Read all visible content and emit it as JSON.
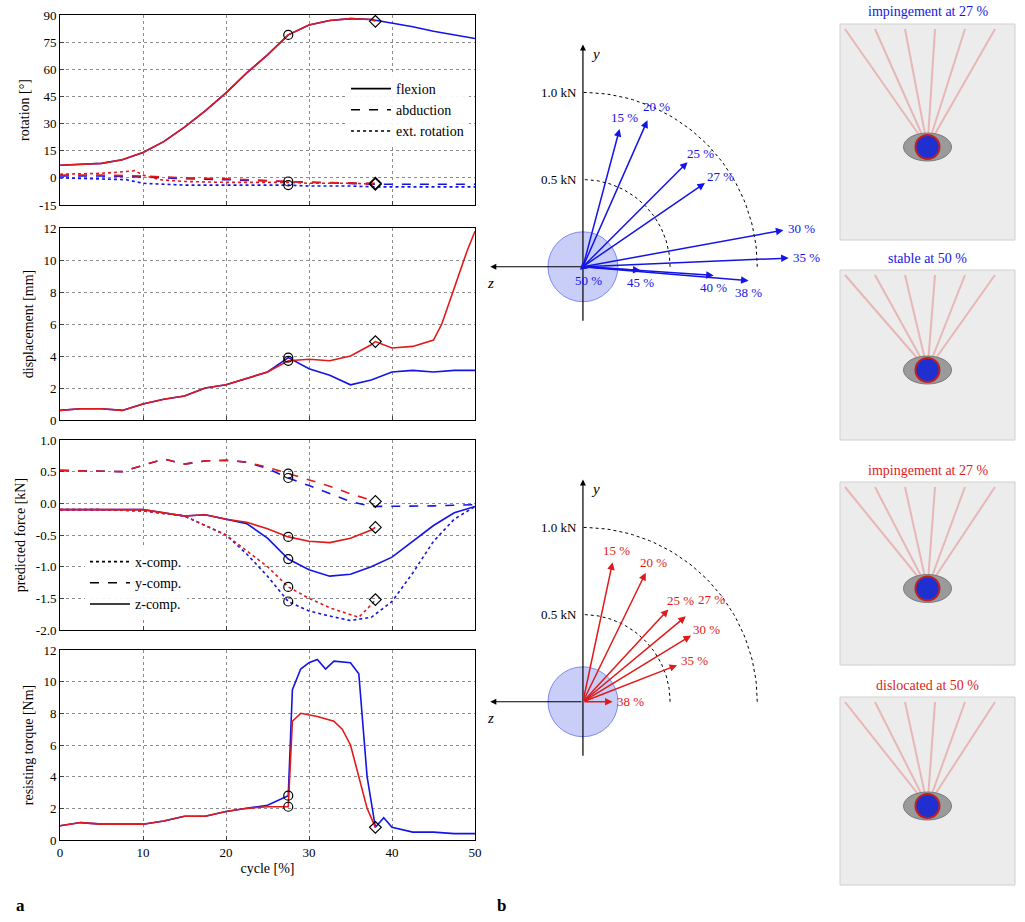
{
  "panel_labels": [
    "a",
    "b"
  ],
  "chart_data": [
    {
      "type": "line",
      "ylabel": "rotation [°]",
      "xlim": [
        0,
        50
      ],
      "xticks": [
        0,
        10,
        20,
        30,
        40,
        50
      ],
      "ylim": [
        -15,
        90
      ],
      "yticks": [
        -15,
        0,
        15,
        30,
        45,
        60,
        75,
        90
      ],
      "grid": true,
      "tick_labels": "y",
      "legend": "center right",
      "legend_entries": [
        {
          "name": "flexion",
          "line_style": "solid"
        },
        {
          "name": "abduction",
          "line_style": "dashed"
        },
        {
          "name": "ext. rotation",
          "line_style": "dotted"
        }
      ],
      "series": [
        {
          "color": "#1414e6",
          "line_style": "solid",
          "x": [
            0,
            2.5,
            5,
            7.5,
            10,
            12.5,
            15,
            17.5,
            20,
            22.5,
            25,
            27.5,
            30,
            32.5,
            35,
            37.5,
            40,
            42.5,
            45,
            47.5,
            50
          ],
          "values": [
            7,
            7.5,
            8,
            10,
            14,
            20,
            28,
            37,
            47,
            58,
            68,
            79,
            84.5,
            87,
            88,
            87.5,
            85.5,
            83.5,
            81,
            79,
            77
          ]
        },
        {
          "color": "#1414e6",
          "line_style": "dashed",
          "x": [
            0,
            5,
            10,
            15,
            20,
            25,
            27.5,
            30,
            35,
            38,
            40,
            45,
            50
          ],
          "values": [
            1,
            1,
            0.5,
            -0.5,
            -1,
            -1.8,
            -2,
            -2.5,
            -3,
            -3.5,
            -3.5,
            -3.5,
            -3.5
          ]
        },
        {
          "color": "#1414e6",
          "line_style": "dotted",
          "x": [
            0,
            5,
            8,
            10,
            12.5,
            15,
            20,
            25,
            27.5,
            30,
            35,
            38,
            40,
            45,
            50
          ],
          "values": [
            0,
            -0.5,
            -1,
            -3,
            -3.5,
            -4,
            -4,
            -4,
            -4,
            -4.5,
            -4.5,
            -5,
            -5,
            -5,
            -5
          ]
        },
        {
          "color": "#e01a1a",
          "line_style": "solid",
          "x": [
            0,
            2.5,
            5,
            7.5,
            10,
            12.5,
            15,
            17.5,
            20,
            22.5,
            25,
            27.5,
            30,
            32.5,
            35,
            37.5,
            38
          ],
          "values": [
            7,
            7.5,
            8,
            10,
            14,
            20,
            28,
            37,
            47,
            58,
            68,
            79,
            84.5,
            87,
            88,
            87.5,
            86.5
          ]
        },
        {
          "color": "#e01a1a",
          "line_style": "dashed",
          "x": [
            0,
            5,
            10,
            15,
            20,
            25,
            27.5,
            30,
            35,
            38
          ],
          "values": [
            1.5,
            1.5,
            1,
            0,
            -0.5,
            -1.5,
            -2,
            -2.5,
            -2.8,
            -3
          ]
        },
        {
          "color": "#e01a1a",
          "line_style": "dotted",
          "x": [
            0,
            5,
            8,
            9,
            10,
            12,
            15,
            20,
            25,
            27.5,
            30,
            35,
            38
          ],
          "values": [
            2,
            2.5,
            3.5,
            4,
            1.5,
            -1,
            -2,
            -2.5,
            -2.5,
            -2.5,
            -3,
            -3,
            -3.5
          ]
        },
        {
          "type": "scatter",
          "marker": "circle",
          "color": "#000000",
          "x": [
            27.5,
            27.5,
            27.5
          ],
          "values": [
            79,
            -2,
            -4
          ]
        },
        {
          "type": "scatter",
          "marker": "diamond",
          "color": "#000000",
          "x": [
            38,
            38,
            38
          ],
          "values": [
            86.5,
            -3,
            -3.5
          ]
        }
      ]
    },
    {
      "type": "line",
      "ylabel": "displacement [mm]",
      "xlim": [
        0,
        50
      ],
      "xticks": [
        0,
        10,
        20,
        30,
        40,
        50
      ],
      "ylim": [
        0,
        12
      ],
      "yticks": [
        0,
        2,
        4,
        6,
        8,
        10,
        12
      ],
      "grid": true,
      "tick_labels": "y",
      "series": [
        {
          "color": "#1414e6",
          "line_style": "solid",
          "x": [
            0,
            2.5,
            5,
            7.5,
            10,
            12.5,
            15,
            17.5,
            20,
            22.5,
            25,
            27.5,
            30,
            32.5,
            35,
            37.5,
            40,
            42.5,
            45,
            47.5,
            50
          ],
          "values": [
            0.6,
            0.7,
            0.7,
            0.6,
            1.0,
            1.3,
            1.5,
            2.0,
            2.2,
            2.6,
            3.0,
            3.9,
            3.2,
            2.8,
            2.2,
            2.5,
            3.0,
            3.1,
            3.0,
            3.1,
            3.1
          ]
        },
        {
          "color": "#e01a1a",
          "line_style": "solid",
          "x": [
            0,
            2.5,
            5,
            7.5,
            10,
            12.5,
            15,
            17.5,
            20,
            22.5,
            25,
            27.5,
            30,
            32.5,
            35,
            37.5,
            38,
            40,
            42.5,
            45,
            46,
            47,
            48,
            49,
            50
          ],
          "values": [
            0.6,
            0.7,
            0.7,
            0.6,
            1.0,
            1.3,
            1.5,
            2.0,
            2.2,
            2.6,
            3.0,
            3.7,
            3.8,
            3.7,
            4.0,
            4.7,
            4.9,
            4.5,
            4.6,
            5.0,
            6.0,
            7.5,
            9.0,
            10.5,
            11.8
          ]
        },
        {
          "type": "scatter",
          "marker": "circle",
          "color": "#000000",
          "x": [
            27.5,
            27.5
          ],
          "values": [
            3.9,
            3.7
          ]
        },
        {
          "type": "scatter",
          "marker": "diamond",
          "color": "#000000",
          "x": [
            38
          ],
          "values": [
            4.9
          ]
        }
      ]
    },
    {
      "type": "line",
      "ylabel": "predicted force [kN]",
      "xlim": [
        0,
        50
      ],
      "xticks": [
        0,
        10,
        20,
        30,
        40,
        50
      ],
      "ylim": [
        -2,
        1
      ],
      "yticks": [
        {
          "value": -2,
          "label": "-2.0"
        },
        {
          "value": -1.5,
          "label": "-1.5"
        },
        {
          "value": -1,
          "label": "-1.0"
        },
        {
          "value": -0.5,
          "label": "-0.5"
        },
        {
          "value": 0,
          "label": "0.0"
        },
        {
          "value": 0.5,
          "label": "0.5"
        },
        {
          "value": 1,
          "label": "1.0"
        }
      ],
      "grid": true,
      "tick_labels": "y",
      "legend": "lower left",
      "legend_entries": [
        {
          "name": "x-comp.",
          "line_style": "dotted"
        },
        {
          "name": "y-comp.",
          "line_style": "dashed"
        },
        {
          "name": "z-comp.",
          "line_style": "solid"
        }
      ],
      "series": [
        {
          "color": "#1414e6",
          "line_style": "dashed",
          "x": [
            0,
            5,
            7.5,
            10,
            12.5,
            15,
            17.5,
            20,
            22.5,
            25,
            27.5,
            30,
            32.5,
            35,
            37.5,
            40,
            45,
            50
          ],
          "values": [
            0.52,
            0.5,
            0.5,
            0.6,
            0.7,
            0.62,
            0.67,
            0.68,
            0.65,
            0.55,
            0.4,
            0.28,
            0.15,
            0.03,
            -0.05,
            -0.05,
            -0.04,
            -0.02
          ]
        },
        {
          "color": "#1414e6",
          "line_style": "solid",
          "x": [
            0,
            5,
            10,
            12.5,
            15,
            17.5,
            20,
            22.5,
            25,
            27.5,
            30,
            32.5,
            35,
            37.5,
            40,
            42.5,
            45,
            47.5,
            50
          ],
          "values": [
            -0.1,
            -0.1,
            -0.1,
            -0.15,
            -0.2,
            -0.18,
            -0.25,
            -0.32,
            -0.55,
            -0.88,
            -1.05,
            -1.15,
            -1.12,
            -1.0,
            -0.85,
            -0.6,
            -0.35,
            -0.15,
            -0.05
          ]
        },
        {
          "color": "#1414e6",
          "line_style": "dotted",
          "x": [
            0,
            5,
            10,
            15,
            17.5,
            20,
            22.5,
            25,
            27.5,
            30,
            32.5,
            35,
            37.5,
            40,
            42.5,
            45,
            47.5,
            50
          ],
          "values": [
            -0.1,
            -0.1,
            -0.12,
            -0.2,
            -0.35,
            -0.5,
            -0.8,
            -1.15,
            -1.55,
            -1.7,
            -1.78,
            -1.85,
            -1.8,
            -1.55,
            -1.1,
            -0.6,
            -0.25,
            -0.05
          ]
        },
        {
          "color": "#e01a1a",
          "line_style": "dashed",
          "x": [
            0,
            5,
            7.5,
            10,
            12.5,
            15,
            17.5,
            20,
            22.5,
            25,
            27.5,
            30,
            32.5,
            35,
            37.5,
            38
          ],
          "values": [
            0.52,
            0.5,
            0.5,
            0.6,
            0.7,
            0.62,
            0.67,
            0.68,
            0.65,
            0.57,
            0.47,
            0.37,
            0.27,
            0.15,
            0.05,
            0.03
          ]
        },
        {
          "color": "#e01a1a",
          "line_style": "solid",
          "x": [
            0,
            5,
            10,
            12.5,
            15,
            17.5,
            20,
            22.5,
            25,
            27.5,
            30,
            32.5,
            35,
            37.5,
            38
          ],
          "values": [
            -0.1,
            -0.1,
            -0.1,
            -0.15,
            -0.2,
            -0.18,
            -0.25,
            -0.3,
            -0.4,
            -0.53,
            -0.6,
            -0.62,
            -0.55,
            -0.42,
            -0.38
          ]
        },
        {
          "color": "#e01a1a",
          "line_style": "dotted",
          "x": [
            0,
            5,
            10,
            15,
            17.5,
            20,
            22.5,
            25,
            27.5,
            30,
            32.5,
            35,
            36,
            37.5,
            38
          ],
          "values": [
            -0.1,
            -0.1,
            -0.12,
            -0.2,
            -0.35,
            -0.5,
            -0.75,
            -1.0,
            -1.32,
            -1.5,
            -1.65,
            -1.75,
            -1.8,
            -1.6,
            -1.52
          ]
        },
        {
          "type": "scatter",
          "marker": "circle",
          "color": "#000000",
          "x": [
            27.5,
            27.5,
            27.5,
            27.5,
            27.5,
            27.5
          ],
          "values": [
            0.47,
            0.4,
            -0.53,
            -0.88,
            -1.32,
            -1.55
          ]
        },
        {
          "type": "scatter",
          "marker": "diamond",
          "color": "#000000",
          "x": [
            38,
            38,
            38
          ],
          "values": [
            0.03,
            -0.38,
            -1.52
          ]
        }
      ]
    },
    {
      "type": "line",
      "xlabel": "cycle [%]",
      "ylabel": "resisting torque [Nm]",
      "xlim": [
        0,
        50
      ],
      "xticks": [
        0,
        10,
        20,
        30,
        40,
        50
      ],
      "ylim": [
        0,
        12
      ],
      "yticks": [
        0,
        2,
        4,
        6,
        8,
        10,
        12
      ],
      "grid": true,
      "series": [
        {
          "color": "#1414e6",
          "line_style": "solid",
          "x": [
            0,
            2.5,
            5,
            7.5,
            10,
            12.5,
            15,
            17.5,
            20,
            22.5,
            25,
            27.5,
            28,
            29,
            30,
            31,
            32,
            33,
            35,
            36,
            37,
            38,
            39,
            40,
            42.5,
            45,
            47.5,
            50
          ],
          "values": [
            0.9,
            1.1,
            1.0,
            1.0,
            1.0,
            1.2,
            1.5,
            1.5,
            1.8,
            2.0,
            2.2,
            2.8,
            9.5,
            10.8,
            11.2,
            11.4,
            10.8,
            11.3,
            11.2,
            10.5,
            4.0,
            0.8,
            1.4,
            0.8,
            0.5,
            0.5,
            0.4,
            0.4
          ]
        },
        {
          "color": "#e01a1a",
          "line_style": "solid",
          "x": [
            0,
            2.5,
            5,
            7.5,
            10,
            12.5,
            15,
            17.5,
            20,
            22.5,
            25,
            27.5,
            28,
            29,
            31,
            33,
            34,
            35,
            36,
            37,
            38
          ],
          "values": [
            0.9,
            1.1,
            1.0,
            1.0,
            1.0,
            1.2,
            1.5,
            1.5,
            1.8,
            2.0,
            2.1,
            2.1,
            7.5,
            8.0,
            7.8,
            7.5,
            7.0,
            6.0,
            4.0,
            2.0,
            0.8
          ]
        },
        {
          "type": "scatter",
          "marker": "circle",
          "color": "#000000",
          "x": [
            27.5,
            27.5
          ],
          "values": [
            2.8,
            2.1
          ]
        },
        {
          "type": "scatter",
          "marker": "diamond",
          "color": "#000000",
          "x": [
            38
          ],
          "values": [
            0.8
          ]
        }
      ]
    },
    {
      "type": "vector",
      "xlabel": "z",
      "ylabel": "y",
      "color": "#1414e6",
      "arcs": [
        {
          "value": 0.5,
          "label": "0.5 kN"
        },
        {
          "value": 1.0,
          "label": "1.0 kN"
        }
      ],
      "vectors": [
        {
          "label": "15 %",
          "z": -0.21,
          "y": 0.79
        },
        {
          "label": "20 %",
          "z": -0.37,
          "y": 0.84
        },
        {
          "label": "25 %",
          "z": -0.6,
          "y": 0.6
        },
        {
          "label": "27 %",
          "z": -0.7,
          "y": 0.48
        },
        {
          "label": "30 %",
          "z": -1.15,
          "y": 0.21
        },
        {
          "label": "35 %",
          "z": -1.18,
          "y": 0.05
        },
        {
          "label": "38 %",
          "z": -0.95,
          "y": -0.08
        },
        {
          "label": "40 %",
          "z": -0.75,
          "y": -0.05
        },
        {
          "label": "45 %",
          "z": -0.33,
          "y": -0.02
        },
        {
          "label": "50 %",
          "z": -0.03,
          "y": -0.01
        }
      ],
      "insets": [
        {
          "caption": "impingement at 27 %"
        },
        {
          "caption": "stable at 50 %"
        }
      ]
    },
    {
      "type": "vector",
      "xlabel": "z",
      "ylabel": "y",
      "color": "#e01a1a",
      "arcs": [
        {
          "value": 0.5,
          "label": "0.5 kN"
        },
        {
          "value": 1.0,
          "label": "1.0 kN"
        }
      ],
      "vectors": [
        {
          "label": "15 %",
          "z": -0.17,
          "y": 0.8
        },
        {
          "label": "20 %",
          "z": -0.36,
          "y": 0.74
        },
        {
          "label": "25 %",
          "z": -0.49,
          "y": 0.53
        },
        {
          "label": "27 %",
          "z": -0.59,
          "y": 0.49
        },
        {
          "label": "30 %",
          "z": -0.62,
          "y": 0.38
        },
        {
          "label": "35 %",
          "z": -0.54,
          "y": 0.21
        },
        {
          "label": "38 %",
          "z": -0.17,
          "y": 0.0
        }
      ],
      "insets": [
        {
          "caption": "impingement at 27 %"
        },
        {
          "caption": "dislocated at 50 %"
        }
      ]
    }
  ]
}
